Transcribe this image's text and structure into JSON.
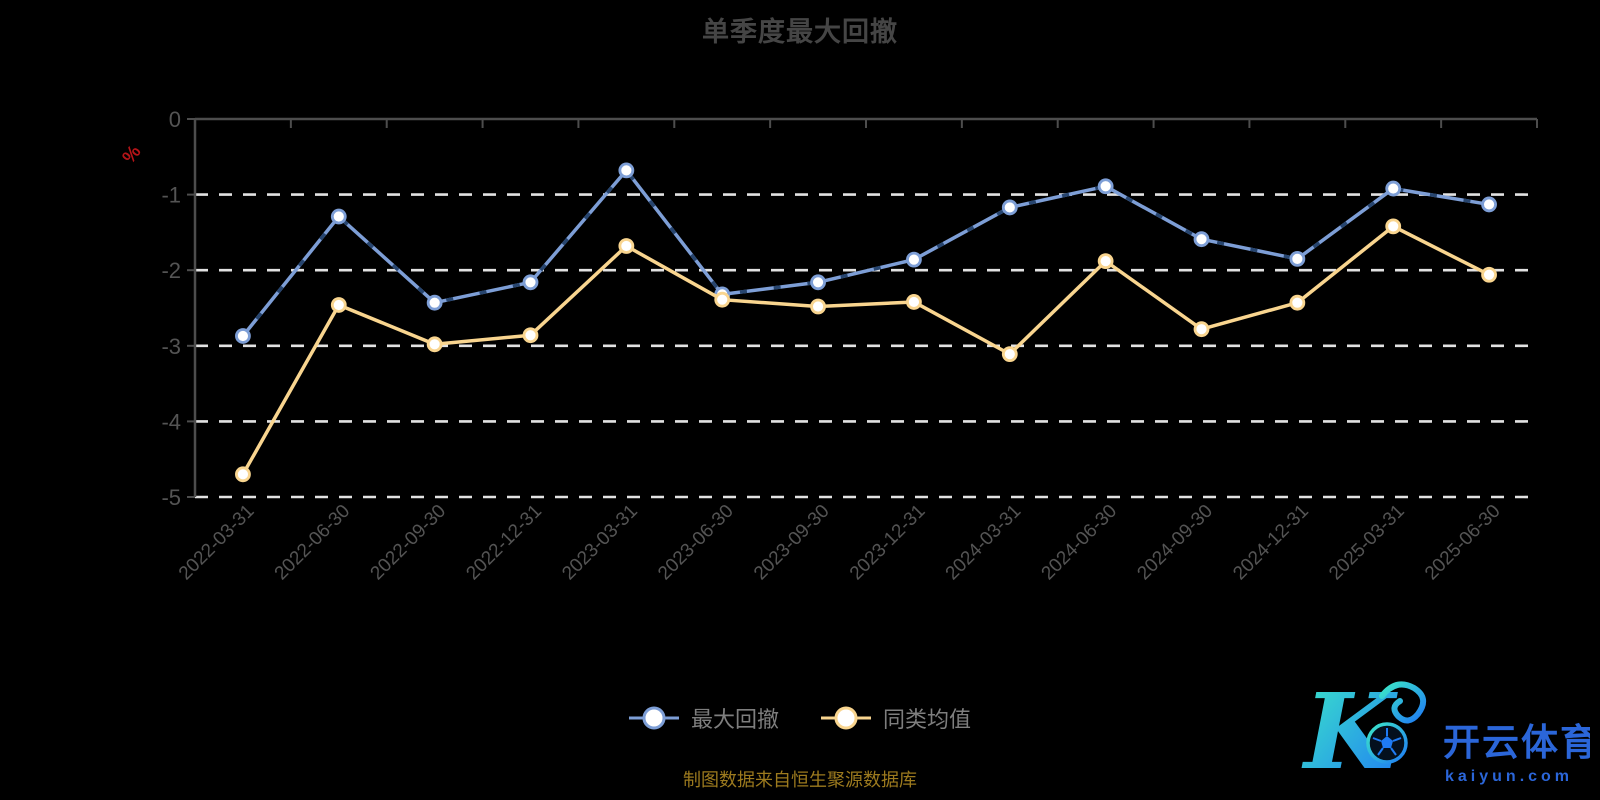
{
  "title": "单季度最大回撤",
  "footer": "制图数据来自恒生聚源数据库",
  "watermark": {
    "brand": "开云体育",
    "domain": "kaiyun.com"
  },
  "colors": {
    "background": "#000000",
    "title": "#454545",
    "axis_line": "#4d4d4d",
    "grid_dashed": "#e2e2e2",
    "tick_label": "#545454",
    "unit_label": "#b51418",
    "legend_text": "#7e7e7e",
    "footer_text": "#9c7a1e",
    "watermark_blue": "#2b66d9",
    "watermark_gradient_start": "#3ce8c8",
    "watermark_gradient_end": "#1f7bf4"
  },
  "chart_data": {
    "type": "line",
    "title": "单季度最大回撤",
    "xlabel": "",
    "ylabel": "%",
    "ylim": [
      -5,
      0
    ],
    "y_ticks": [
      0,
      -1,
      -2,
      -3,
      -4,
      -5
    ],
    "grid": "horizontal-dashed",
    "legend_position": "bottom",
    "x_label_rotation": -45,
    "categories": [
      "2022-03-31",
      "2022-06-30",
      "2022-09-30",
      "2022-12-31",
      "2023-03-31",
      "2023-06-30",
      "2023-09-30",
      "2023-12-31",
      "2024-03-31",
      "2024-06-30",
      "2024-09-30",
      "2024-12-31",
      "2025-03-31",
      "2025-06-30"
    ],
    "series": [
      {
        "name": "最大回撤",
        "color": "#7d9ed6",
        "marker_fill": "#ffffff",
        "dash_overlay_color": "#27456f",
        "values": [
          -2.87,
          -1.29,
          -2.43,
          -2.16,
          -0.68,
          -2.32,
          -2.16,
          -1.86,
          -1.17,
          -0.89,
          -1.59,
          -1.85,
          -0.92,
          -1.13
        ]
      },
      {
        "name": "同类均值",
        "color": "#f9d58f",
        "marker_fill": "#ffffff",
        "dash_overlay_color": null,
        "values": [
          -4.7,
          -2.46,
          -2.98,
          -2.86,
          -1.68,
          -2.39,
          -2.48,
          -2.42,
          -3.11,
          -1.88,
          -2.78,
          -2.43,
          -1.42,
          -2.06
        ]
      }
    ]
  }
}
